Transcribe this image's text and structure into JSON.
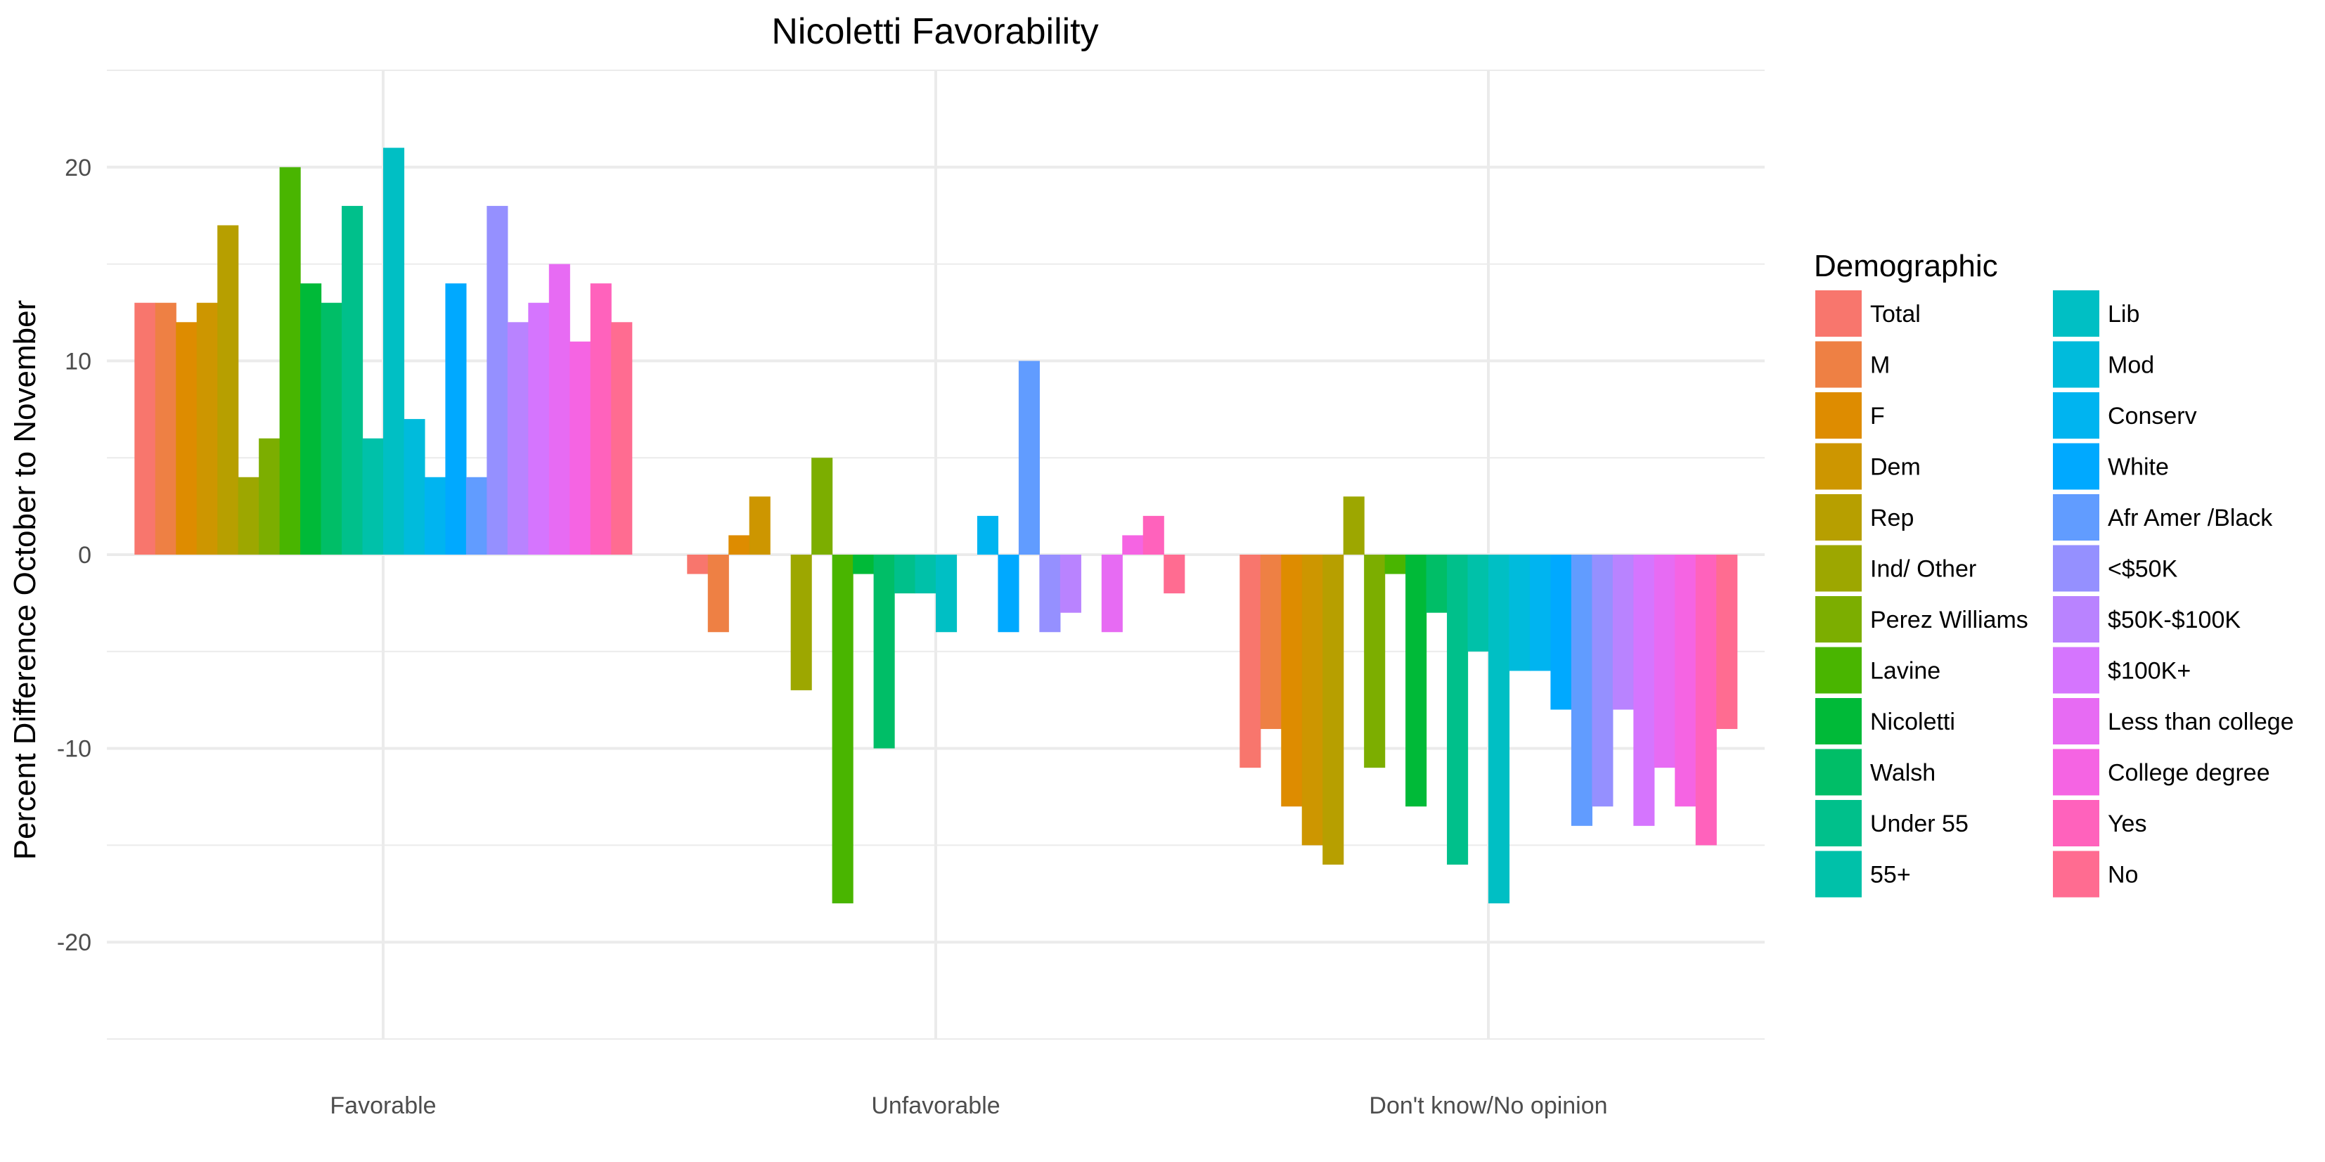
{
  "chart_data": {
    "type": "bar",
    "title": "Nicoletti Favorability",
    "xlabel": "",
    "ylabel": "Percent Difference October to November",
    "ylim": [
      -25,
      25
    ],
    "y_ticks": [
      -20,
      -10,
      0,
      10,
      20
    ],
    "grid": true,
    "legend_position": "right",
    "legend_title": "Demographic",
    "categories": [
      "Favorable",
      "Unfavorable",
      "Don't know/No opinion"
    ],
    "series": [
      {
        "name": "Total",
        "color": "#F8766D",
        "values": [
          13,
          -1,
          -11
        ]
      },
      {
        "name": "M",
        "color": "#EE8044",
        "values": [
          13,
          -4,
          -9
        ]
      },
      {
        "name": "F",
        "color": "#DE8C00",
        "values": [
          12,
          1,
          -13
        ]
      },
      {
        "name": "Dem",
        "color": "#CD9600",
        "values": [
          13,
          3,
          -15
        ]
      },
      {
        "name": "Rep",
        "color": "#B79F00",
        "values": [
          17,
          0,
          -16
        ]
      },
      {
        "name": "Ind/ Other",
        "color": "#9DA700",
        "values": [
          4,
          -7,
          3
        ]
      },
      {
        "name": "Perez Williams",
        "color": "#7CAE00",
        "values": [
          6,
          5,
          -11
        ]
      },
      {
        "name": "Lavine",
        "color": "#49B500",
        "values": [
          20,
          -18,
          -1
        ]
      },
      {
        "name": "Nicoletti",
        "color": "#00BA38",
        "values": [
          14,
          -1,
          -13
        ]
      },
      {
        "name": "Walsh",
        "color": "#00BE67",
        "values": [
          13,
          -10,
          -3
        ]
      },
      {
        "name": "Under 55",
        "color": "#00C08B",
        "values": [
          18,
          -2,
          -16
        ]
      },
      {
        "name": "55+",
        "color": "#00C1A9",
        "values": [
          6,
          -2,
          -5
        ]
      },
      {
        "name": "Lib",
        "color": "#00BFC4",
        "values": [
          21,
          -4,
          -18
        ]
      },
      {
        "name": "Mod",
        "color": "#00BBDC",
        "values": [
          7,
          0,
          -6
        ]
      },
      {
        "name": "Conserv",
        "color": "#00B4F0",
        "values": [
          4,
          2,
          -6
        ]
      },
      {
        "name": "White",
        "color": "#00A9FF",
        "values": [
          14,
          -4,
          -8
        ]
      },
      {
        "name": "Afr Amer /Black",
        "color": "#619CFF",
        "values": [
          4,
          10,
          -14
        ]
      },
      {
        "name": "<$50K",
        "color": "#9590FF",
        "values": [
          18,
          -4,
          -13
        ]
      },
      {
        "name": "$50K-$100K",
        "color": "#B983FF",
        "values": [
          12,
          -3,
          -8
        ]
      },
      {
        "name": "$100K+",
        "color": "#D575FE",
        "values": [
          13,
          0,
          -14
        ]
      },
      {
        "name": "Less than college",
        "color": "#E76BF3",
        "values": [
          15,
          -4,
          -11
        ]
      },
      {
        "name": "College degree",
        "color": "#F564E3",
        "values": [
          11,
          1,
          -13
        ]
      },
      {
        "name": "Yes",
        "color": "#FF62BC",
        "values": [
          14,
          2,
          -15
        ]
      },
      {
        "name": "No",
        "color": "#FF6C91",
        "values": [
          12,
          -2,
          -9
        ]
      }
    ]
  }
}
